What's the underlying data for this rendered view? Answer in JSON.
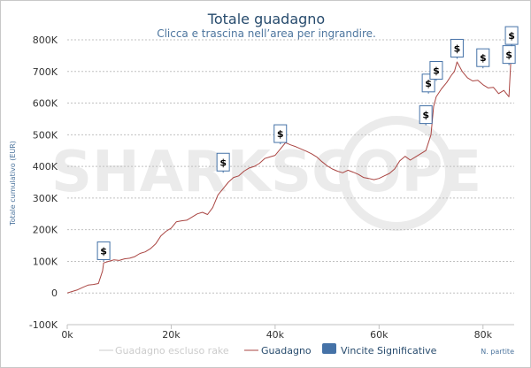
{
  "chart_data": {
    "type": "line",
    "title": "Totale guadagno",
    "subtitle": "Clicca e trascina nell’area per ingrandire.",
    "xlabel": "N. partite",
    "ylabel": "Totale cumulativo (EUR)",
    "xlim": [
      0,
      86000
    ],
    "ylim": [
      -100000,
      800000
    ],
    "x_ticks": [
      {
        "value": 0,
        "label": "0k"
      },
      {
        "value": 20000,
        "label": "20k"
      },
      {
        "value": 40000,
        "label": "40k"
      },
      {
        "value": 60000,
        "label": "60k"
      },
      {
        "value": 80000,
        "label": "80k"
      }
    ],
    "y_ticks": [
      {
        "value": -100000,
        "label": "-100K"
      },
      {
        "value": 0,
        "label": "0"
      },
      {
        "value": 100000,
        "label": "100K"
      },
      {
        "value": 200000,
        "label": "200K"
      },
      {
        "value": 300000,
        "label": "300K"
      },
      {
        "value": 400000,
        "label": "400K"
      },
      {
        "value": 500000,
        "label": "500K"
      },
      {
        "value": 600000,
        "label": "600K"
      },
      {
        "value": 700000,
        "label": "700K"
      },
      {
        "value": 800000,
        "label": "800K"
      }
    ],
    "grid": true,
    "legend": "bottom",
    "watermark": "SHARKSCOPE",
    "series": [
      {
        "name": "Guadagno escluso rake",
        "color": "#cccccc",
        "x": [],
        "y": []
      },
      {
        "name": "Guadagno",
        "color": "#aa4643",
        "x": [
          0,
          1000,
          2000,
          3000,
          4000,
          5000,
          6000,
          6800,
          7000,
          8000,
          9000,
          10000,
          11000,
          12000,
          13000,
          14000,
          15000,
          16000,
          17000,
          18000,
          19000,
          20000,
          21000,
          22000,
          23000,
          24000,
          25000,
          26000,
          27000,
          28000,
          29000,
          30000,
          31000,
          32000,
          33000,
          34000,
          35000,
          36000,
          37000,
          38000,
          39000,
          40000,
          41000,
          42000,
          43000,
          44000,
          45000,
          46000,
          47000,
          48000,
          49000,
          50000,
          51000,
          52000,
          53000,
          54000,
          55000,
          56000,
          57000,
          58000,
          59000,
          60000,
          61000,
          62000,
          63000,
          64000,
          65000,
          66000,
          67000,
          68000,
          69000,
          70000,
          70500,
          71000,
          72000,
          73000,
          74000,
          74500,
          75000,
          76000,
          77000,
          78000,
          79000,
          80000,
          81000,
          82000,
          83000,
          84000,
          85000,
          85500
        ],
        "y": [
          0,
          5000,
          10000,
          18000,
          25000,
          27000,
          30000,
          70000,
          95000,
          100000,
          105000,
          103000,
          108000,
          110000,
          115000,
          125000,
          130000,
          140000,
          155000,
          180000,
          195000,
          205000,
          225000,
          228000,
          230000,
          240000,
          250000,
          255000,
          248000,
          270000,
          310000,
          330000,
          350000,
          365000,
          370000,
          385000,
          395000,
          400000,
          410000,
          425000,
          430000,
          435000,
          455000,
          475000,
          468000,
          462000,
          455000,
          448000,
          440000,
          430000,
          415000,
          402000,
          392000,
          385000,
          380000,
          388000,
          382000,
          375000,
          365000,
          362000,
          358000,
          362000,
          370000,
          378000,
          392000,
          418000,
          432000,
          420000,
          430000,
          440000,
          450000,
          500000,
          590000,
          620000,
          645000,
          665000,
          690000,
          700000,
          730000,
          700000,
          680000,
          670000,
          672000,
          658000,
          648000,
          650000,
          630000,
          640000,
          620000,
          780000
        ]
      }
    ],
    "significant_wins": {
      "name": "Vincite Significative",
      "color": "#4572a7",
      "marker_label": "$",
      "x": [
        7000,
        30000,
        41000,
        69000,
        69500,
        71000,
        75000,
        80000,
        85000,
        85500
      ],
      "y": [
        100000,
        380000,
        470000,
        530000,
        630000,
        670000,
        740000,
        710000,
        720000,
        780000
      ]
    }
  }
}
